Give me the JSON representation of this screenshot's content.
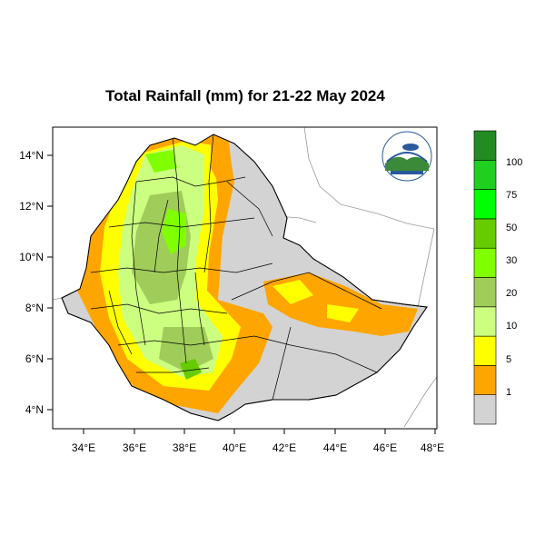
{
  "map": {
    "title": "Total Rainfall (mm) for 21-22 May 2024",
    "lon_ticks": [
      "34°E",
      "36°E",
      "38°E",
      "40°E",
      "42°E",
      "44°E",
      "46°E",
      "48°E"
    ],
    "lat_ticks": [
      "14°N",
      "12°N",
      "10°N",
      "8°N",
      "6°N",
      "4°N"
    ],
    "lon_range": [
      33,
      48.2
    ],
    "lat_range": [
      3.2,
      15
    ],
    "colorbar": {
      "labels": [
        "1",
        "5",
        "10",
        "20",
        "30",
        "50",
        "75",
        "100"
      ],
      "colors": [
        "#d3d3d3",
        "#ffa500",
        "#ffff00",
        "#ccff80",
        "#a0cc5a",
        "#80ff00",
        "#66cc00",
        "#00ff00",
        "#20d020",
        "#228b22"
      ]
    },
    "country_fill": "#d3d3d3"
  }
}
